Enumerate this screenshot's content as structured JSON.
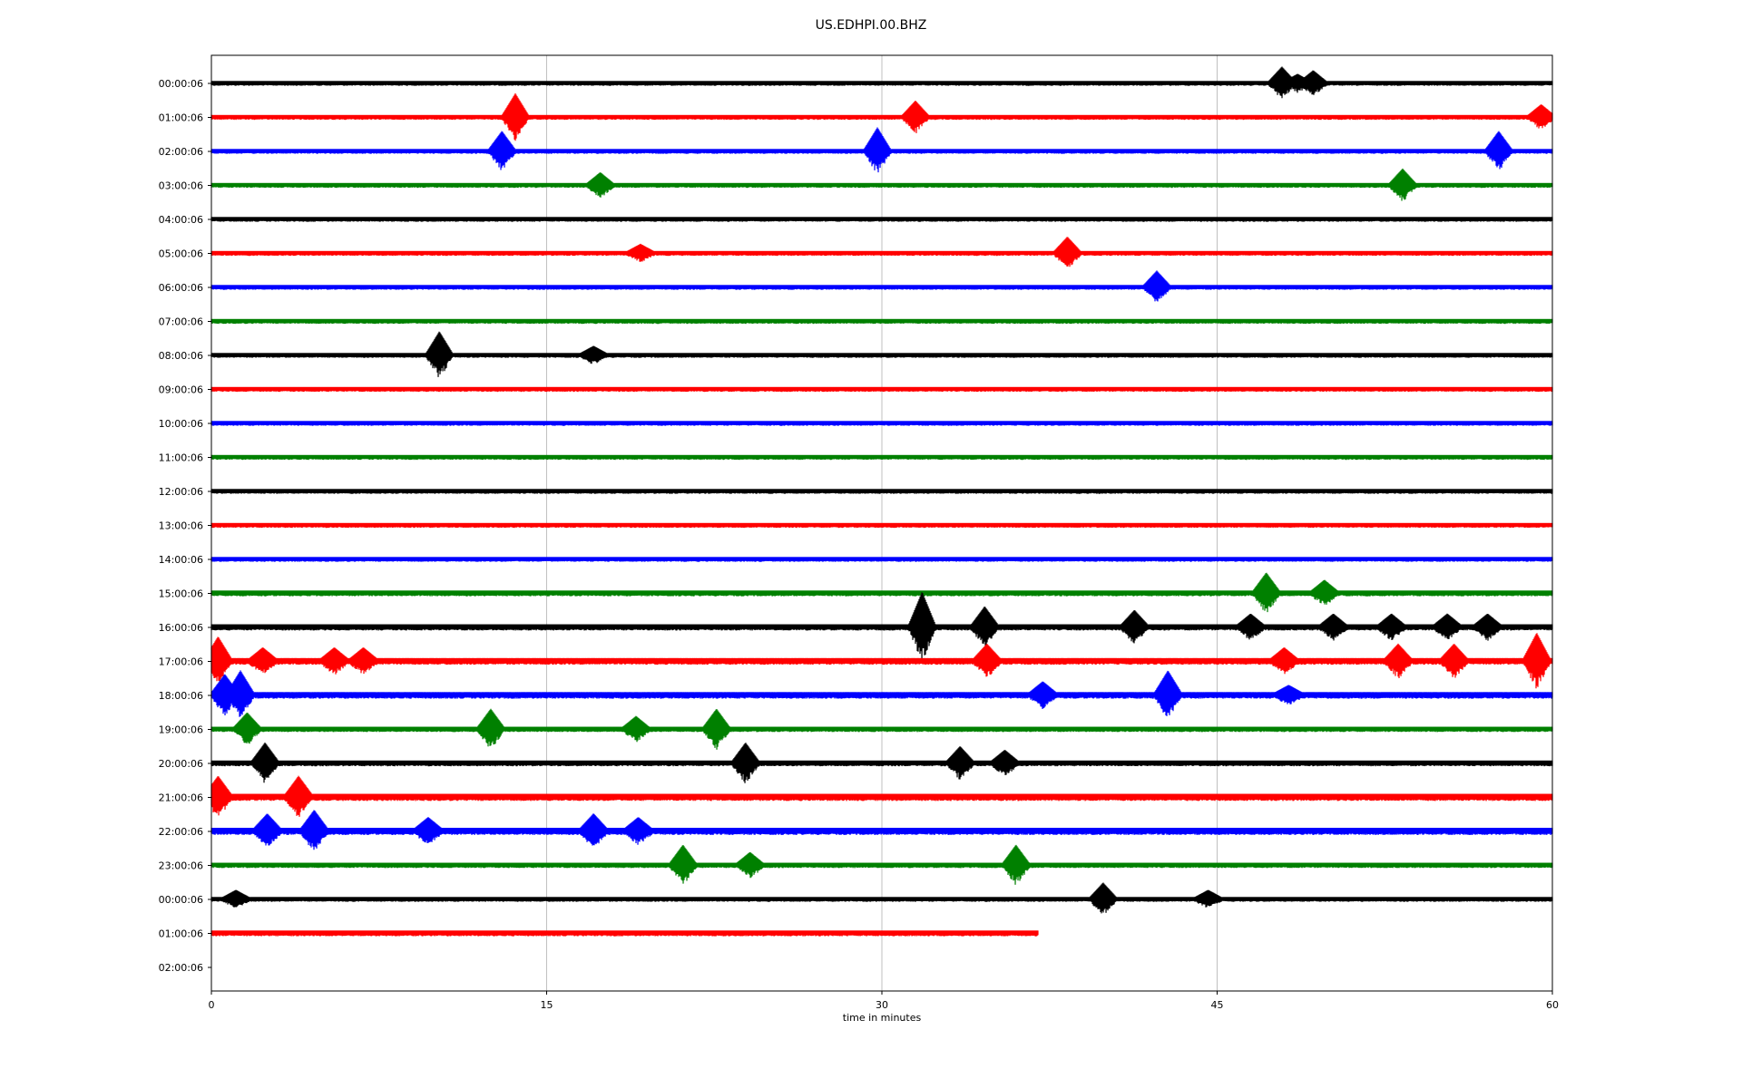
{
  "chart_data": {
    "type": "line",
    "title": "US.EDHPI.00.BHZ",
    "xlabel": "time in minutes",
    "ylabel": "",
    "xlim": [
      0,
      60
    ],
    "x_ticks": [
      0,
      15,
      30,
      45,
      60
    ],
    "x_tick_labels": [
      "0",
      "15",
      "30",
      "45",
      "60"
    ],
    "grid": "vertical",
    "trace_colors": [
      "#000000",
      "#ff0000",
      "#0000ff",
      "#008000"
    ],
    "row_labels": [
      "00:00:06",
      "01:00:06",
      "02:00:06",
      "03:00:06",
      "04:00:06",
      "05:00:06",
      "06:00:06",
      "07:00:06",
      "08:00:06",
      "09:00:06",
      "10:00:06",
      "11:00:06",
      "12:00:06",
      "13:00:06",
      "14:00:06",
      "15:00:06",
      "16:00:06",
      "17:00:06",
      "18:00:06",
      "19:00:06",
      "20:00:06",
      "21:00:06",
      "22:00:06",
      "23:00:06",
      "00:00:06",
      "01:00:06",
      "02:00:06"
    ],
    "rows": [
      {
        "label": "00:00:06",
        "end": 60,
        "noise": 1,
        "events": [
          [
            47.9,
            4
          ],
          [
            49.3,
            3
          ],
          [
            48.6,
            2
          ]
        ]
      },
      {
        "label": "01:00:06",
        "end": 60,
        "noise": 1,
        "events": [
          [
            13.6,
            6
          ],
          [
            31.5,
            4
          ],
          [
            59.5,
            3
          ]
        ]
      },
      {
        "label": "02:00:06",
        "end": 60,
        "noise": 1,
        "events": [
          [
            13.0,
            5
          ],
          [
            29.8,
            6
          ],
          [
            57.6,
            5
          ]
        ]
      },
      {
        "label": "03:00:06",
        "end": 60,
        "noise": 1,
        "events": [
          [
            17.4,
            3
          ],
          [
            53.3,
            4
          ]
        ]
      },
      {
        "label": "04:00:06",
        "end": 60,
        "noise": 1,
        "events": []
      },
      {
        "label": "05:00:06",
        "end": 60,
        "noise": 1,
        "events": [
          [
            19.2,
            2
          ],
          [
            38.3,
            4
          ]
        ]
      },
      {
        "label": "06:00:06",
        "end": 60,
        "noise": 1,
        "events": [
          [
            42.3,
            4
          ]
        ]
      },
      {
        "label": "07:00:06",
        "end": 60,
        "noise": 1,
        "events": []
      },
      {
        "label": "08:00:06",
        "end": 60,
        "noise": 1,
        "events": [
          [
            10.2,
            6
          ],
          [
            17.1,
            2
          ]
        ]
      },
      {
        "label": "09:00:06",
        "end": 60,
        "noise": 1,
        "events": []
      },
      {
        "label": "10:00:06",
        "end": 60,
        "noise": 1,
        "events": []
      },
      {
        "label": "11:00:06",
        "end": 60,
        "noise": 1,
        "events": []
      },
      {
        "label": "12:00:06",
        "end": 60,
        "noise": 1,
        "events": []
      },
      {
        "label": "13:00:06",
        "end": 60,
        "noise": 1,
        "events": []
      },
      {
        "label": "14:00:06",
        "end": 60,
        "noise": 1,
        "events": []
      },
      {
        "label": "15:00:06",
        "end": 60,
        "noise": 1.2,
        "events": [
          [
            47.2,
            5
          ],
          [
            49.8,
            3
          ]
        ]
      },
      {
        "label": "16:00:06",
        "end": 60,
        "noise": 1.3,
        "events": [
          [
            31.8,
            9
          ],
          [
            34.6,
            5
          ],
          [
            41.3,
            4
          ],
          [
            46.5,
            3
          ],
          [
            50.2,
            3
          ],
          [
            52.8,
            3
          ],
          [
            55.3,
            3
          ],
          [
            57.1,
            3
          ]
        ]
      },
      {
        "label": "17:00:06",
        "end": 60,
        "noise": 1.4,
        "events": [
          [
            0.3,
            6
          ],
          [
            2.3,
            3
          ],
          [
            5.5,
            3
          ],
          [
            6.8,
            3
          ],
          [
            34.7,
            4
          ],
          [
            48.0,
            3
          ],
          [
            53.1,
            4
          ],
          [
            55.6,
            4
          ],
          [
            59.3,
            7
          ]
        ]
      },
      {
        "label": "18:00:06",
        "end": 60,
        "noise": 1.4,
        "events": [
          [
            0.6,
            5
          ],
          [
            1.3,
            6
          ],
          [
            37.2,
            3
          ],
          [
            42.8,
            6
          ],
          [
            48.2,
            2
          ]
        ]
      },
      {
        "label": "19:00:06",
        "end": 60,
        "noise": 1.1,
        "events": [
          [
            1.6,
            4
          ],
          [
            12.5,
            5
          ],
          [
            19.0,
            3
          ],
          [
            22.6,
            5
          ]
        ]
      },
      {
        "label": "20:00:06",
        "end": 60,
        "noise": 1.2,
        "events": [
          [
            2.4,
            5
          ],
          [
            23.9,
            5
          ],
          [
            33.5,
            4
          ],
          [
            35.5,
            3
          ]
        ]
      },
      {
        "label": "21:00:06",
        "end": 60,
        "noise": 1.5,
        "events": [
          [
            0.3,
            5
          ],
          [
            3.9,
            5
          ]
        ]
      },
      {
        "label": "22:00:06",
        "end": 60,
        "noise": 1.5,
        "events": [
          [
            2.5,
            4
          ],
          [
            4.6,
            5
          ],
          [
            9.7,
            3
          ],
          [
            17.1,
            4
          ],
          [
            19.1,
            3
          ]
        ]
      },
      {
        "label": "23:00:06",
        "end": 60,
        "noise": 1.1,
        "events": [
          [
            21.1,
            5
          ],
          [
            24.1,
            3
          ],
          [
            36.0,
            5
          ]
        ]
      },
      {
        "label": "00:00:06",
        "end": 60,
        "noise": 1,
        "events": [
          [
            1.1,
            2
          ],
          [
            39.9,
            4
          ],
          [
            44.6,
            2
          ]
        ]
      },
      {
        "label": "01:00:06",
        "end": 37,
        "noise": 1.2,
        "events": []
      },
      {
        "label": "02:00:06",
        "end": 0,
        "noise": 0,
        "events": []
      }
    ]
  }
}
